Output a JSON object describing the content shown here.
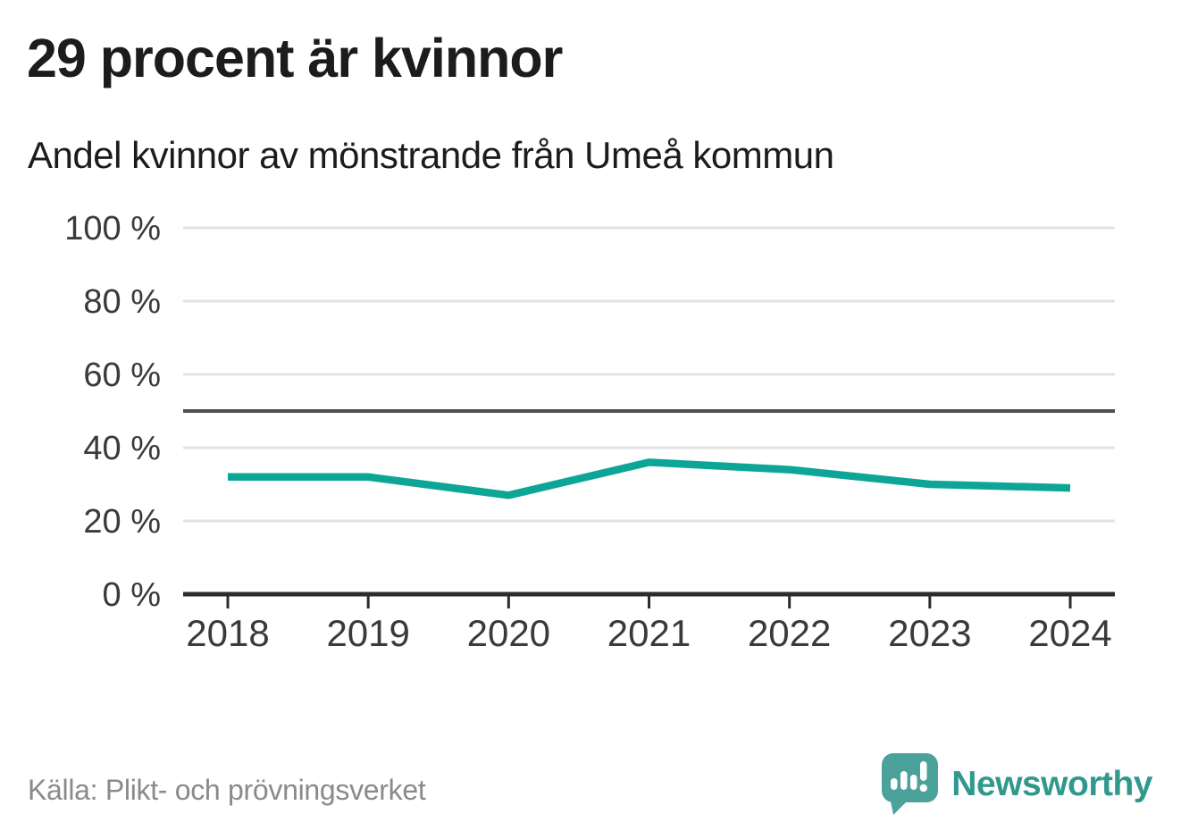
{
  "chart_data": {
    "type": "line",
    "title": "29 procent är kvinnor",
    "subtitle": "Andel kvinnor av mönstrande från Umeå kommun",
    "x": [
      2018,
      2019,
      2020,
      2021,
      2022,
      2023,
      2024
    ],
    "series": [
      {
        "name": "andel-kvinnor",
        "values": [
          32,
          32,
          27,
          36,
          34,
          30,
          29
        ]
      }
    ],
    "unit": "%",
    "ylim": [
      0,
      100
    ],
    "yticks": [
      0,
      20,
      40,
      60,
      80,
      100
    ],
    "ytick_labels": [
      "0 %",
      "20 %",
      "40 %",
      "60 %",
      "80 %",
      "100 %"
    ],
    "reference_line": 50,
    "grid": true,
    "legend": false,
    "colors": {
      "line": "#0da696",
      "grid": "#e3e3e3",
      "reference": "#4f4f4f",
      "axis": "#2c2c2c",
      "tick_label": "#3a3a3a"
    }
  },
  "footer": {
    "source": "Källa: Plikt- och prövningsverket",
    "logo_text": "Newsworthy",
    "logo_text_color": "#31988e",
    "logo_bubble_color": "#4ba29a"
  }
}
